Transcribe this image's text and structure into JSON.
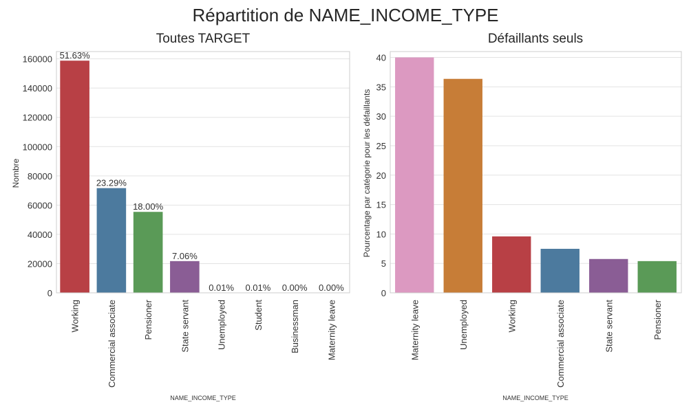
{
  "figure": {
    "title": "Répartition de NAME_INCOME_TYPE"
  },
  "chart_data": [
    {
      "type": "bar",
      "title": "Toutes TARGET",
      "xlabel": "NAME_INCOME_TYPE",
      "ylabel": "Nombre",
      "categories": [
        "Working",
        "Commercial associate",
        "Pensioner",
        "State servant",
        "Unemployed",
        "Student",
        "Businessman",
        "Maternity leave"
      ],
      "values": [
        158774,
        71617,
        55362,
        21703,
        22,
        18,
        10,
        5
      ],
      "bar_labels": [
        "51.63%",
        "23.29%",
        "18.00%",
        "7.06%",
        "0.01%",
        "0.01%",
        "0.00%",
        "0.00%"
      ],
      "colors": [
        "#b84045",
        "#4c7a9e",
        "#5a9a57",
        "#8a5d95",
        "#c97d37",
        "#999999",
        "#d99ac3",
        "#c4c4c4"
      ],
      "ylim": [
        0,
        165000
      ],
      "yticks": [
        0,
        20000,
        40000,
        60000,
        80000,
        100000,
        120000,
        140000,
        160000
      ],
      "grid": true
    },
    {
      "type": "bar",
      "title": "Défaillants seuls",
      "xlabel": "NAME_INCOME_TYPE",
      "ylabel": "Pourcentage par catégorie pour les défaillants",
      "categories": [
        "Maternity leave",
        "Unemployed",
        "Working",
        "Commercial associate",
        "State servant",
        "Pensioner"
      ],
      "values": [
        40.0,
        36.36,
        9.59,
        7.48,
        5.75,
        5.39
      ],
      "colors": [
        "#dc99c1",
        "#c77d37",
        "#b84045",
        "#4c7a9e",
        "#8a5d95",
        "#5a9a57"
      ],
      "ylim": [
        0,
        41
      ],
      "yticks": [
        0,
        5,
        10,
        15,
        20,
        25,
        30,
        35,
        40
      ],
      "grid": true
    }
  ]
}
